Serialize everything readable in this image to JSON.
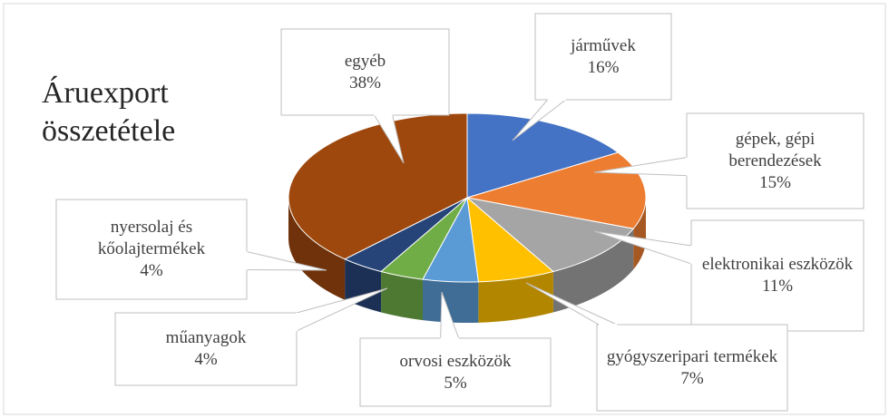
{
  "chart_data": {
    "type": "pie3d",
    "title": "Áruexport összetétele",
    "categories": [
      "járművek",
      "gépek, gépi berendezések",
      "elektronikai eszközök",
      "gyógyszeripari termékek",
      "orvosi eszközök",
      "műanyagok",
      "nyersolaj és kőolajtermékek",
      "egyéb"
    ],
    "values": [
      16,
      15,
      11,
      7,
      5,
      4,
      4,
      38
    ],
    "value_labels": [
      "16%",
      "15%",
      "11%",
      "7%",
      "5%",
      "4%",
      "4%",
      "38%"
    ],
    "colors": [
      "#4472c4",
      "#ed7d31",
      "#a5a5a5",
      "#ffc000",
      "#5b9bd5",
      "#70ad47",
      "#264478",
      "#9e480e"
    ]
  }
}
